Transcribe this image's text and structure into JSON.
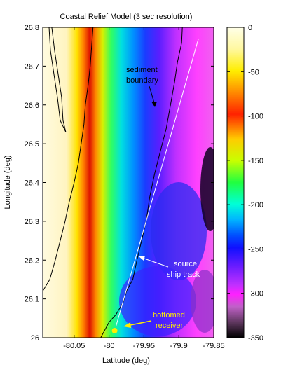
{
  "chart_data": {
    "type": "heatmap",
    "title": "Coastal Relief Model (3 sec resolution)",
    "xlabel": "Latitude (deg)",
    "ylabel": "Longitude (deg)",
    "xlim": [
      -80.095,
      -79.85
    ],
    "ylim": [
      26.0,
      26.8
    ],
    "x_ticks": [
      {
        "value": -80.05,
        "label": "-80.05"
      },
      {
        "value": -80.0,
        "label": "-80"
      },
      {
        "value": -79.95,
        "label": "-79.95"
      },
      {
        "value": -79.9,
        "label": "-79.9"
      },
      {
        "value": -79.85,
        "label": "-79.85"
      }
    ],
    "y_ticks": [
      {
        "value": 26.0,
        "label": "26"
      },
      {
        "value": 26.1,
        "label": "26.1"
      },
      {
        "value": 26.2,
        "label": "26.2"
      },
      {
        "value": 26.3,
        "label": "26.3"
      },
      {
        "value": 26.4,
        "label": "26.4"
      },
      {
        "value": 26.5,
        "label": "26.5"
      },
      {
        "value": 26.6,
        "label": "26.6"
      },
      {
        "value": 26.7,
        "label": "26.7"
      },
      {
        "value": 26.8,
        "label": "26.8"
      }
    ],
    "colorbar": {
      "colormap": "jet-like",
      "range": [
        -350,
        0
      ],
      "ticks": [
        {
          "value": 0,
          "label": "0"
        },
        {
          "value": -50,
          "label": "-50"
        },
        {
          "value": -100,
          "label": "-100"
        },
        {
          "value": -150,
          "label": "-150"
        },
        {
          "value": -200,
          "label": "-200"
        },
        {
          "value": -250,
          "label": "-250"
        },
        {
          "value": -300,
          "label": "-300"
        },
        {
          "value": -350,
          "label": "-350"
        }
      ]
    },
    "annotations": {
      "sediment": [
        "sediment",
        "boundary"
      ],
      "ship": [
        "source",
        "ship track"
      ],
      "receiver": [
        "bottomed",
        "receiver"
      ]
    },
    "ship_track": {
      "start": {
        "x": -79.99,
        "y": 26.03
      },
      "end": {
        "x": -79.872,
        "y": 26.77
      }
    },
    "receiver": {
      "x": -79.992,
      "y": 26.018,
      "color": "#ffee00"
    },
    "sediment_boundary": [
      {
        "x": -79.895,
        "y": 26.8
      },
      {
        "x": -79.896,
        "y": 26.76
      },
      {
        "x": -79.902,
        "y": 26.71
      },
      {
        "x": -79.906,
        "y": 26.66
      },
      {
        "x": -79.912,
        "y": 26.6
      },
      {
        "x": -79.918,
        "y": 26.54
      },
      {
        "x": -79.928,
        "y": 26.47
      },
      {
        "x": -79.935,
        "y": 26.42
      },
      {
        "x": -79.942,
        "y": 26.36
      },
      {
        "x": -79.946,
        "y": 26.31
      },
      {
        "x": -79.952,
        "y": 26.26
      },
      {
        "x": -79.96,
        "y": 26.2
      },
      {
        "x": -79.966,
        "y": 26.15
      },
      {
        "x": -79.975,
        "y": 26.12
      },
      {
        "x": -79.98,
        "y": 26.09
      },
      {
        "x": -79.99,
        "y": 26.06
      },
      {
        "x": -80.0,
        "y": 26.04
      },
      {
        "x": -80.012,
        "y": 26.0
      }
    ],
    "coastline": [
      {
        "x": -80.023,
        "y": 26.8
      },
      {
        "x": -80.025,
        "y": 26.75
      },
      {
        "x": -80.027,
        "y": 26.7
      },
      {
        "x": -80.03,
        "y": 26.65
      },
      {
        "x": -80.034,
        "y": 26.6
      },
      {
        "x": -80.036,
        "y": 26.55
      },
      {
        "x": -80.04,
        "y": 26.5
      },
      {
        "x": -80.044,
        "y": 26.45
      },
      {
        "x": -80.05,
        "y": 26.4
      },
      {
        "x": -80.057,
        "y": 26.35
      },
      {
        "x": -80.063,
        "y": 26.3
      },
      {
        "x": -80.07,
        "y": 26.25
      },
      {
        "x": -80.077,
        "y": 26.2
      },
      {
        "x": -80.085,
        "y": 26.15
      },
      {
        "x": -80.095,
        "y": 26.12
      }
    ],
    "island": [
      {
        "x": -80.082,
        "y": 26.8
      },
      {
        "x": -80.078,
        "y": 26.74
      },
      {
        "x": -80.073,
        "y": 26.68
      },
      {
        "x": -80.068,
        "y": 26.62
      },
      {
        "x": -80.066,
        "y": 26.56
      },
      {
        "x": -80.062,
        "y": 26.53
      },
      {
        "x": -80.07,
        "y": 26.56
      },
      {
        "x": -80.074,
        "y": 26.62
      },
      {
        "x": -80.079,
        "y": 26.68
      },
      {
        "x": -80.084,
        "y": 26.74
      },
      {
        "x": -80.086,
        "y": 26.8
      }
    ]
  }
}
